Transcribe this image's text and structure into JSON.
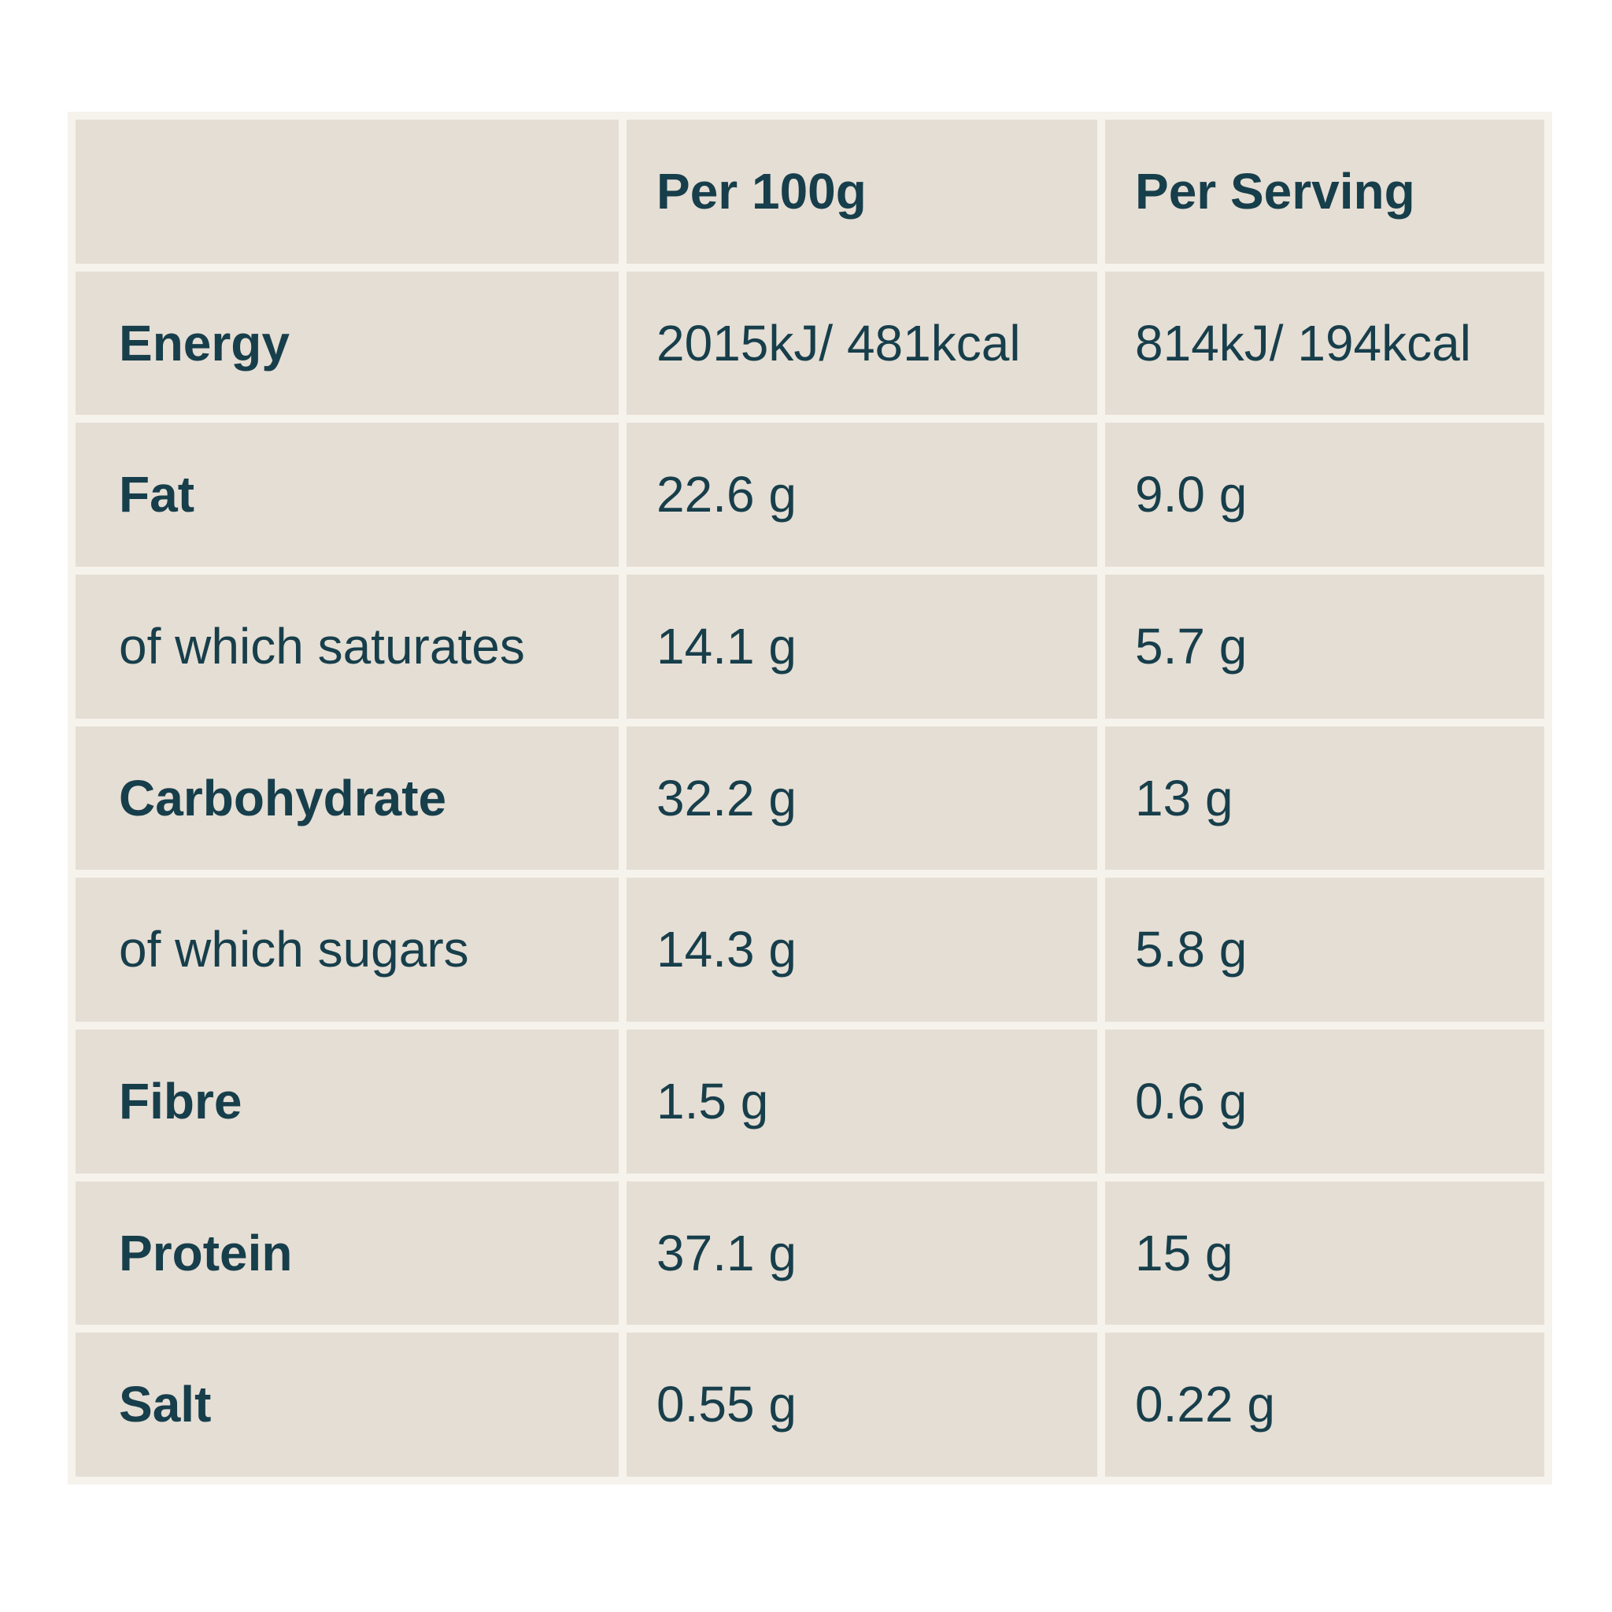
{
  "header": {
    "col1": "",
    "col2": "Per 100g",
    "col3": "Per Serving"
  },
  "rows": [
    {
      "label": "Energy",
      "per_100g": "2015kJ/ 481kcal",
      "per_serving": "814kJ/ 194kcal"
    },
    {
      "label": "Fat",
      "per_100g": "22.6 g",
      "per_serving": "9.0 g"
    },
    {
      "label": "of which saturates",
      "per_100g": "14.1 g",
      "per_serving": "5.7 g"
    },
    {
      "label": "Carbohydrate",
      "per_100g": "32.2 g",
      "per_serving": "13 g"
    },
    {
      "label": "of which sugars",
      "per_100g": "14.3 g",
      "per_serving": "5.8 g"
    },
    {
      "label": "Fibre",
      "per_100g": "1.5 g",
      "per_serving": "0.6 g"
    },
    {
      "label": "Protein",
      "per_100g": "37.1 g",
      "per_serving": "15 g"
    },
    {
      "label": "Salt",
      "per_100g": "0.55 g",
      "per_serving": "0.22 g"
    }
  ],
  "colors": {
    "page_bg": "#ffffff",
    "table_gap_bg": "#f6f2ec",
    "cell_bg": "#e5ded4",
    "text": "#173e4b"
  },
  "chart_data": {
    "type": "table",
    "columns": [
      "",
      "Per 100g",
      "Per Serving"
    ],
    "rows": [
      [
        "Energy",
        "2015kJ/ 481kcal",
        "814kJ/ 194kcal"
      ],
      [
        "Fat",
        "22.6 g",
        "9.0 g"
      ],
      [
        "of which saturates",
        "14.1 g",
        "5.7 g"
      ],
      [
        "Carbohydrate",
        "32.2 g",
        "13 g"
      ],
      [
        "of which sugars",
        "14.3 g",
        "5.8 g"
      ],
      [
        "Fibre",
        "1.5 g",
        "0.6 g"
      ],
      [
        "Protein",
        "37.1 g",
        "15 g"
      ],
      [
        "Salt",
        "0.55 g",
        "0.22 g"
      ]
    ]
  }
}
